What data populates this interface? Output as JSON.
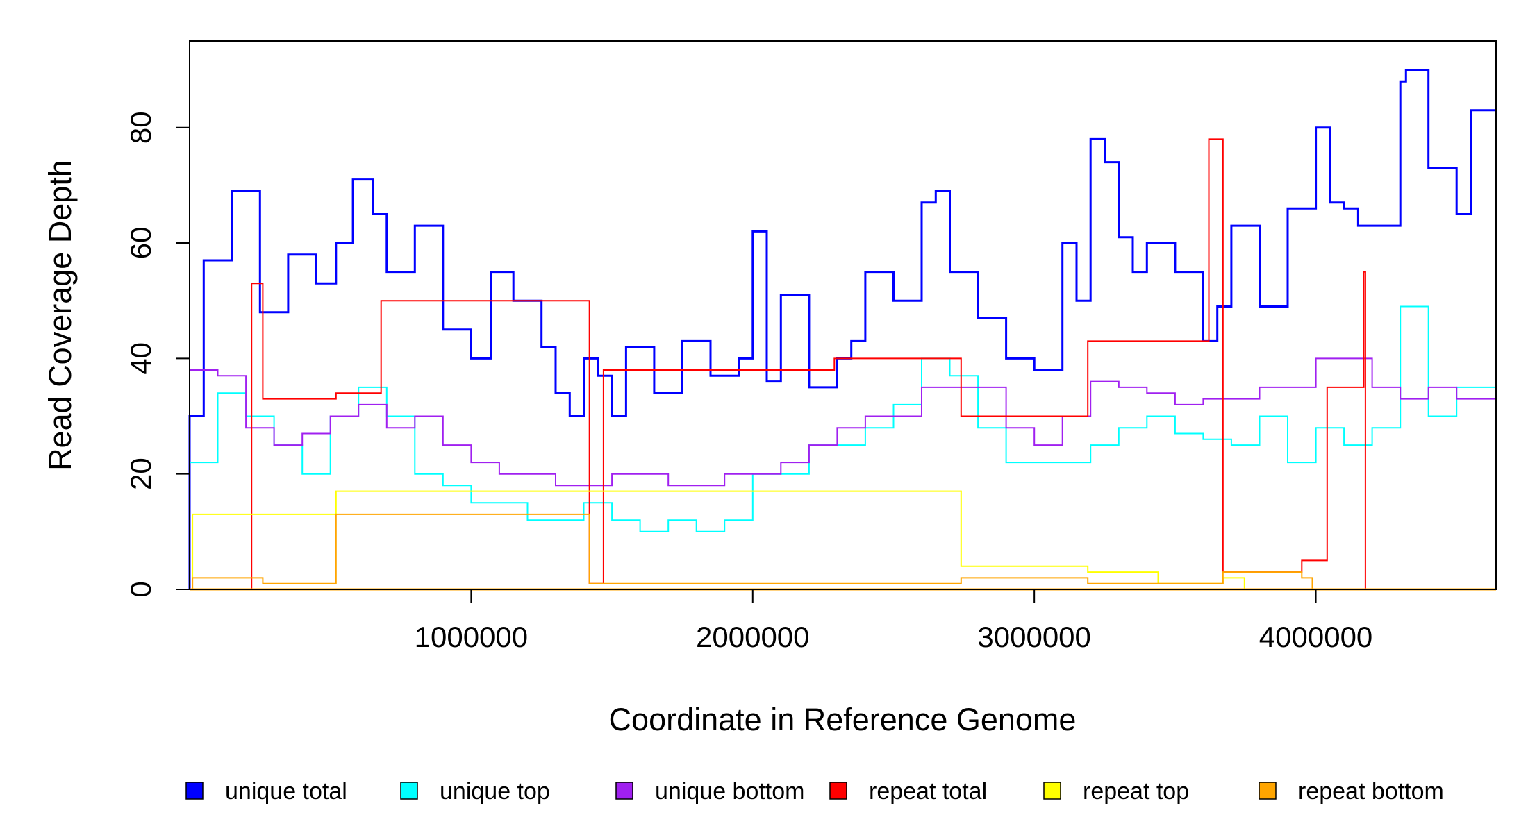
{
  "chart_data": {
    "type": "line",
    "title": "",
    "xlabel": "Coordinate in Reference Genome",
    "ylabel": "Read Coverage Depth",
    "xlim": [
      0,
      4640000
    ],
    "ylim": [
      0,
      95
    ],
    "x_ticks": [
      1000000,
      2000000,
      3000000,
      4000000
    ],
    "x_tick_labels": [
      "1000000",
      "2000000",
      "3000000",
      "4000000"
    ],
    "y_ticks": [
      0,
      20,
      40,
      60,
      80
    ],
    "y_tick_labels": [
      "0",
      "20",
      "40",
      "60",
      "80"
    ],
    "grid": false,
    "legend_position": "bottom",
    "series": [
      {
        "name": "unique total",
        "color": "#0000FF",
        "step": "hv",
        "x": [
          0,
          50000,
          150000,
          250000,
          350000,
          450000,
          520000,
          580000,
          650000,
          700000,
          800000,
          900000,
          1000000,
          1070000,
          1150000,
          1250000,
          1300000,
          1350000,
          1400000,
          1450000,
          1500000,
          1550000,
          1650000,
          1750000,
          1850000,
          1950000,
          2000000,
          2050000,
          2100000,
          2200000,
          2300000,
          2350000,
          2400000,
          2500000,
          2600000,
          2650000,
          2700000,
          2800000,
          2900000,
          3000000,
          3100000,
          3150000,
          3200000,
          3250000,
          3300000,
          3350000,
          3400000,
          3500000,
          3600000,
          3650000,
          3700000,
          3800000,
          3900000,
          4000000,
          4050000,
          4100000,
          4150000,
          4250000,
          4300000,
          4320000,
          4400000,
          4500000,
          4550000,
          4640000
        ],
        "y": [
          30,
          57,
          69,
          48,
          58,
          53,
          60,
          71,
          65,
          55,
          63,
          45,
          40,
          55,
          50,
          42,
          34,
          30,
          40,
          37,
          30,
          42,
          34,
          43,
          37,
          40,
          62,
          36,
          51,
          35,
          40,
          43,
          55,
          50,
          67,
          69,
          55,
          47,
          40,
          38,
          60,
          50,
          78,
          74,
          61,
          55,
          60,
          55,
          43,
          49,
          63,
          49,
          66,
          80,
          67,
          66,
          63,
          63,
          88,
          90,
          73,
          65,
          83,
          55
        ]
      },
      {
        "name": "unique top",
        "color": "#00FFFF",
        "step": "hv",
        "x": [
          0,
          100000,
          200000,
          300000,
          400000,
          500000,
          600000,
          700000,
          800000,
          900000,
          1000000,
          1100000,
          1200000,
          1300000,
          1400000,
          1500000,
          1600000,
          1700000,
          1800000,
          1900000,
          2000000,
          2100000,
          2200000,
          2300000,
          2400000,
          2500000,
          2600000,
          2700000,
          2800000,
          2900000,
          3000000,
          3100000,
          3200000,
          3300000,
          3400000,
          3500000,
          3600000,
          3700000,
          3800000,
          3900000,
          4000000,
          4100000,
          4200000,
          4300000,
          4400000,
          4500000,
          4640000
        ],
        "y": [
          22,
          34,
          30,
          25,
          20,
          30,
          35,
          30,
          20,
          18,
          15,
          15,
          12,
          12,
          15,
          12,
          10,
          12,
          10,
          12,
          20,
          20,
          25,
          25,
          28,
          32,
          40,
          37,
          28,
          22,
          22,
          22,
          25,
          28,
          30,
          27,
          26,
          25,
          30,
          22,
          28,
          25,
          28,
          49,
          30,
          35,
          28
        ]
      },
      {
        "name": "unique bottom",
        "color": "#A020F0",
        "step": "hv",
        "x": [
          0,
          100000,
          200000,
          300000,
          400000,
          500000,
          600000,
          700000,
          800000,
          900000,
          1000000,
          1100000,
          1200000,
          1300000,
          1400000,
          1500000,
          1600000,
          1700000,
          1800000,
          1900000,
          2000000,
          2100000,
          2200000,
          2300000,
          2400000,
          2500000,
          2600000,
          2700000,
          2800000,
          2900000,
          3000000,
          3100000,
          3200000,
          3300000,
          3400000,
          3500000,
          3600000,
          3700000,
          3800000,
          3900000,
          4000000,
          4100000,
          4200000,
          4300000,
          4400000,
          4500000,
          4640000
        ],
        "y": [
          38,
          37,
          28,
          25,
          27,
          30,
          32,
          28,
          30,
          25,
          22,
          20,
          20,
          18,
          18,
          20,
          20,
          18,
          18,
          20,
          20,
          22,
          25,
          28,
          30,
          30,
          35,
          35,
          35,
          28,
          25,
          30,
          36,
          35,
          34,
          32,
          33,
          33,
          35,
          35,
          40,
          40,
          35,
          33,
          35,
          33,
          30
        ]
      },
      {
        "name": "repeat total",
        "color": "#FF0000",
        "step": "hv",
        "x": [
          220000,
          260000,
          520000,
          680000,
          1420000,
          1470000,
          2290000,
          2740000,
          3190000,
          3620000,
          3670000,
          3950000,
          4040000,
          4170000
        ],
        "y": [
          53,
          33,
          34,
          50,
          1,
          38,
          40,
          30,
          43,
          78,
          3,
          5,
          35,
          55
        ]
      },
      {
        "name": "repeat top",
        "color": "#FFFF00",
        "step": "hv",
        "x": [
          10000,
          520000,
          2740000,
          3190000,
          3440000,
          3670000
        ],
        "y": [
          13,
          17,
          4,
          3,
          1,
          2
        ]
      },
      {
        "name": "repeat bottom",
        "color": "#FFA500",
        "step": "hv",
        "x": [
          10000,
          260000,
          520000,
          1420000,
          2740000,
          3190000,
          3670000,
          3950000
        ],
        "y": [
          2,
          1,
          13,
          1,
          2,
          1,
          3,
          2
        ]
      }
    ]
  }
}
